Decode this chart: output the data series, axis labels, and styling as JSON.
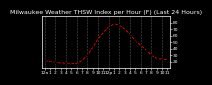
{
  "title": "Milwaukee Weather THSW Index per Hour (F) (Last 24 Hours)",
  "x_hours": [
    0,
    1,
    2,
    3,
    4,
    5,
    6,
    7,
    8,
    9,
    10,
    11,
    12,
    13,
    14,
    15,
    16,
    17,
    18,
    19,
    20,
    21,
    22,
    23
  ],
  "y_values": [
    22,
    20,
    19,
    18,
    18,
    17,
    17,
    22,
    30,
    42,
    55,
    65,
    73,
    78,
    76,
    70,
    62,
    52,
    45,
    38,
    30,
    25,
    24,
    23
  ],
  "line_color": "#ff0000",
  "marker_color": "#000000",
  "bg_color": "#000000",
  "plot_bg_color": "#000000",
  "grid_color": "#555555",
  "title_color": "#ffffff",
  "ylim": [
    10,
    90
  ],
  "xlim": [
    -0.5,
    23.5
  ],
  "yticks": [
    20,
    30,
    40,
    50,
    60,
    70,
    80
  ],
  "xtick_labels": [
    "12a",
    "1",
    "2",
    "3",
    "4",
    "5",
    "6",
    "7",
    "8",
    "9",
    "10",
    "11",
    "12p",
    "1",
    "2",
    "3",
    "4",
    "5",
    "6",
    "7",
    "8",
    "9",
    "10",
    "11"
  ],
  "title_fontsize": 4.5,
  "tick_fontsize": 3.2,
  "tick_color": "#ffffff",
  "spine_color": "#ffffff",
  "grid_xticks": [
    0,
    2,
    4,
    6,
    8,
    10,
    12,
    14,
    16,
    18,
    20,
    22
  ]
}
